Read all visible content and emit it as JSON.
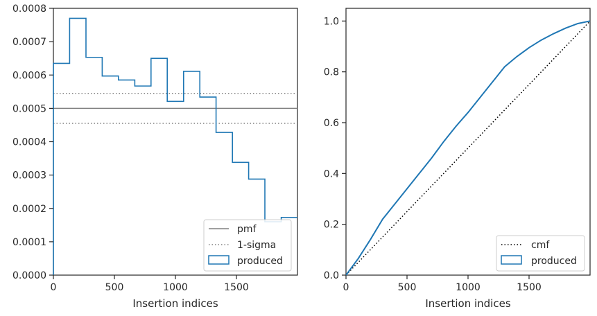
{
  "chart_data": [
    {
      "type": "histogram-step",
      "xlabel": "Insertion indices",
      "ylabel": "",
      "xlim": [
        0,
        2000
      ],
      "ylim": [
        0,
        0.0008
      ],
      "xticks": [
        0,
        500,
        1000,
        1500
      ],
      "xtick_labels": [
        "0",
        "500",
        "1000",
        "1500"
      ],
      "yticks": [
        0,
        0.0001,
        0.0002,
        0.0003,
        0.0004,
        0.0005,
        0.0006,
        0.0007,
        0.0008
      ],
      "ytick_labels": [
        "0.0000",
        "0.0001",
        "0.0002",
        "0.0003",
        "0.0004",
        "0.0005",
        "0.0006",
        "0.0007",
        "0.0008"
      ],
      "bin_edges": [
        0,
        133,
        267,
        400,
        533,
        667,
        800,
        933,
        1067,
        1200,
        1333,
        1467,
        1600,
        1733,
        1867,
        2000
      ],
      "series": [
        {
          "name": "produced",
          "color": "#1f77b4",
          "values": [
            0.000635,
            0.00077,
            0.000653,
            0.000597,
            0.000585,
            0.000567,
            0.00065,
            0.000521,
            0.000611,
            0.000534,
            0.000428,
            0.000338,
            0.000288,
            0.00016,
            0.000173
          ]
        }
      ],
      "hlines": [
        {
          "name": "pmf",
          "y": 0.0005,
          "style": "solid",
          "color": "#808080"
        },
        {
          "name": "1-sigma",
          "y": 0.000545,
          "style": "dotted",
          "color": "#808080"
        },
        {
          "name": "1-sigma",
          "y": 0.000455,
          "style": "dotted",
          "color": "#808080"
        }
      ],
      "legend": {
        "placement": "lower-right",
        "entries": [
          "pmf",
          "1-sigma",
          "produced"
        ]
      },
      "grid": false
    },
    {
      "type": "line",
      "xlabel": "Insertion indices",
      "ylabel": "",
      "xlim": [
        0,
        2000
      ],
      "ylim": [
        0,
        1.05
      ],
      "xticks": [
        0,
        500,
        1000,
        1500
      ],
      "xtick_labels": [
        "0",
        "500",
        "1000",
        "1500"
      ],
      "yticks": [
        0,
        0.2,
        0.4,
        0.6,
        0.8,
        1.0
      ],
      "ytick_labels": [
        "0.0",
        "0.2",
        "0.4",
        "0.6",
        "0.8",
        "1.0"
      ],
      "series": [
        {
          "name": "cmf",
          "style": "dotted",
          "color": "#000000",
          "x": [
            0,
            2000
          ],
          "y": [
            0,
            1.0
          ]
        },
        {
          "name": "produced",
          "style": "solid",
          "color": "#1f77b4",
          "x": [
            0,
            100,
            200,
            300,
            400,
            500,
            600,
            700,
            800,
            900,
            1000,
            1100,
            1200,
            1300,
            1400,
            1500,
            1600,
            1700,
            1800,
            1900,
            2000
          ],
          "y": [
            0,
            0.065,
            0.14,
            0.22,
            0.28,
            0.34,
            0.4,
            0.46,
            0.525,
            0.585,
            0.64,
            0.7,
            0.76,
            0.82,
            0.86,
            0.895,
            0.925,
            0.95,
            0.972,
            0.99,
            1.0
          ]
        }
      ],
      "legend": {
        "placement": "lower-right",
        "entries": [
          "cmf",
          "produced"
        ]
      },
      "grid": false
    }
  ]
}
